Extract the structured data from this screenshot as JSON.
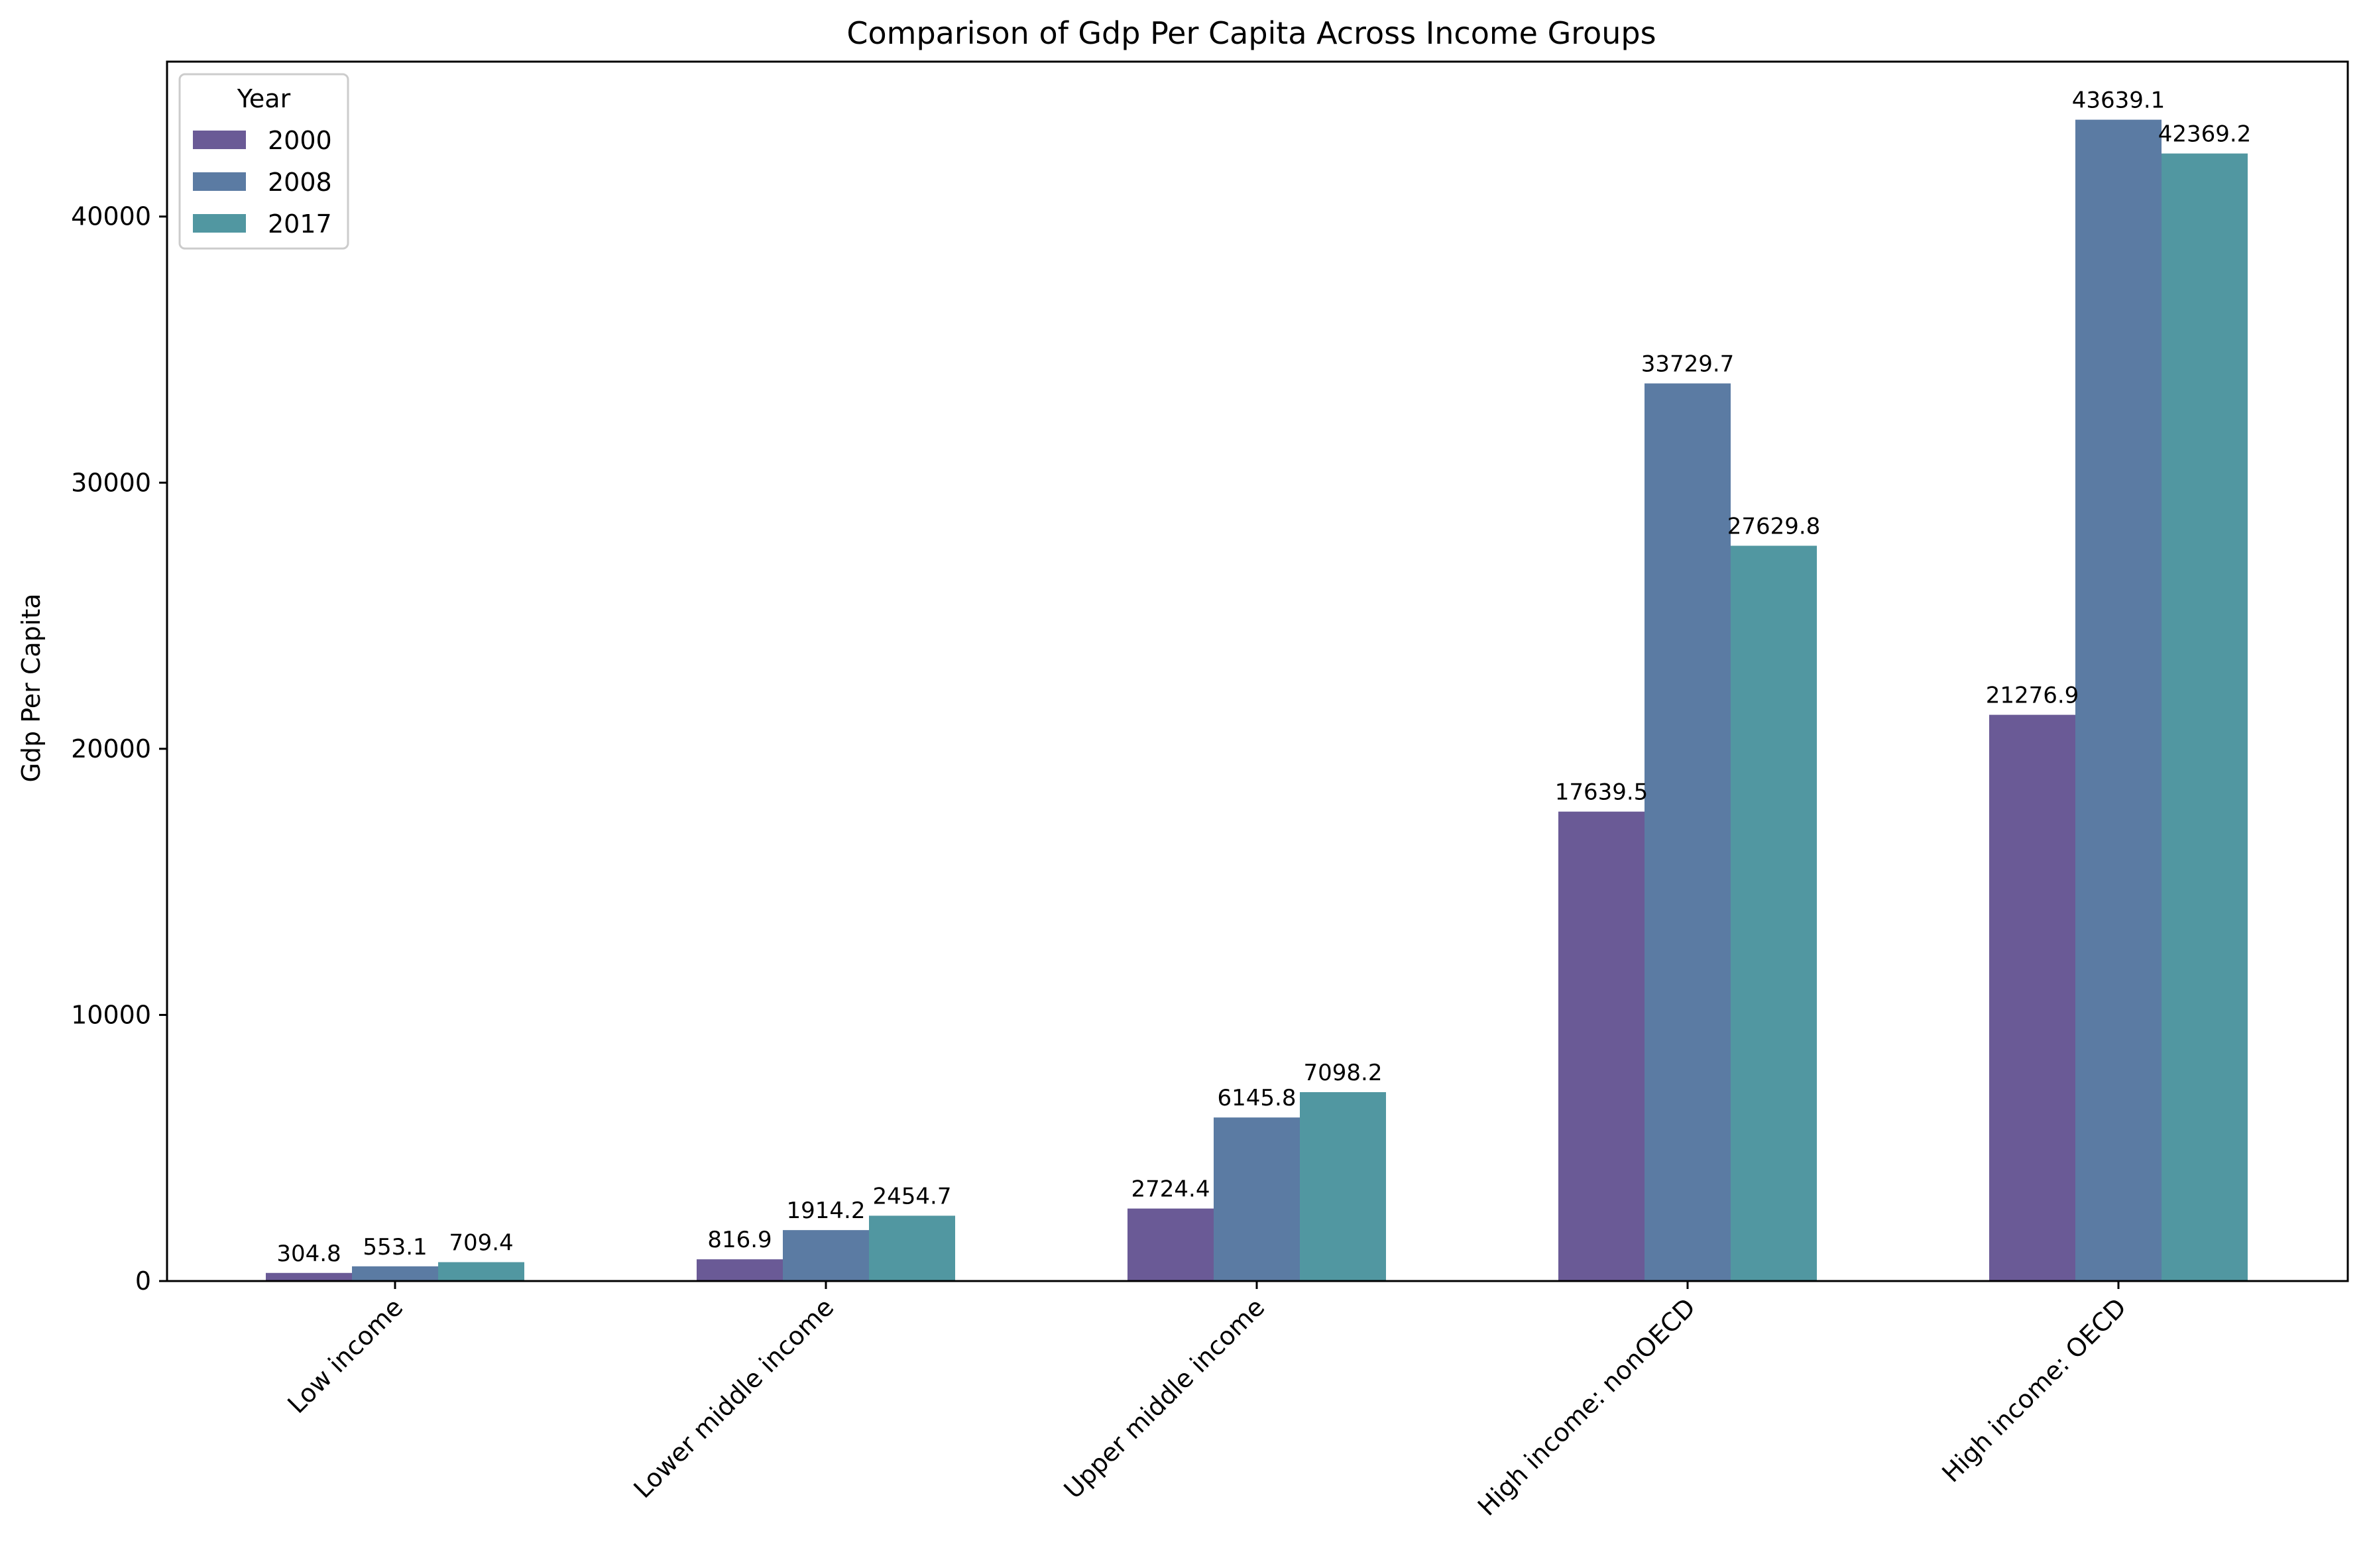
{
  "chart_data": {
    "type": "bar",
    "title": "Comparison of Gdp Per Capita Across Income Groups",
    "xlabel": "",
    "ylabel": "Gdp Per Capita",
    "categories": [
      "Low income",
      "Lower middle income",
      "Upper middle income",
      "High income: nonOECD",
      "High income: OECD"
    ],
    "series": [
      {
        "name": "2000",
        "color": "#6a5a96",
        "values": [
          304.8,
          816.9,
          2724.4,
          17639.5,
          21276.9
        ]
      },
      {
        "name": "2008",
        "color": "#5b7ba3",
        "values": [
          553.1,
          1914.2,
          6145.8,
          33729.7,
          43639.1
        ]
      },
      {
        "name": "2017",
        "color": "#5197a1",
        "values": [
          709.4,
          2454.7,
          7098.2,
          27629.8,
          42369.2
        ]
      }
    ],
    "yticks": [
      0,
      10000,
      20000,
      30000,
      40000
    ],
    "ylim": [
      0,
      45821
    ],
    "grid": false,
    "legend": {
      "title": "Year",
      "placement": "top-left"
    }
  }
}
